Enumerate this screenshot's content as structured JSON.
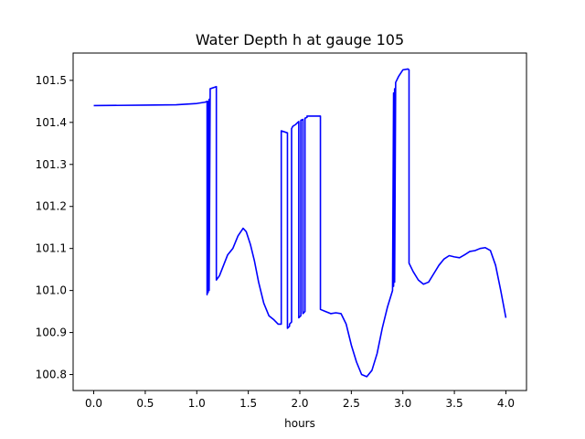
{
  "chart_data": {
    "type": "line",
    "title": "Water Depth h at gauge 105",
    "xlabel": "hours",
    "ylabel": "",
    "xlim": [
      -0.2,
      4.2
    ],
    "ylim": [
      100.762,
      101.565
    ],
    "xticks": [
      0.0,
      0.5,
      1.0,
      1.5,
      2.0,
      2.5,
      3.0,
      3.5,
      4.0
    ],
    "xtick_labels": [
      "0.0",
      "0.5",
      "1.0",
      "1.5",
      "2.0",
      "2.5",
      "3.0",
      "3.5",
      "4.0"
    ],
    "yticks": [
      100.8,
      100.9,
      101.0,
      101.1,
      101.2,
      101.3,
      101.4,
      101.5
    ],
    "ytick_labels": [
      "100.8",
      "100.9",
      "101.0",
      "101.1",
      "101.2",
      "101.3",
      "101.4",
      "101.5"
    ],
    "grid": false,
    "series": [
      {
        "color": "#0000ff",
        "x": [
          0.0,
          0.5,
          0.8,
          1.0,
          1.08,
          1.1,
          1.1,
          1.11,
          1.11,
          1.12,
          1.12,
          1.13,
          1.13,
          1.19,
          1.19,
          1.22,
          1.26,
          1.3,
          1.35,
          1.4,
          1.45,
          1.48,
          1.52,
          1.56,
          1.6,
          1.65,
          1.7,
          1.75,
          1.79,
          1.82,
          1.82,
          1.88,
          1.88,
          1.9,
          1.9,
          1.92,
          1.92,
          1.93,
          1.94,
          1.96,
          1.98,
          1.99,
          1.99,
          2.01,
          2.01,
          2.03,
          2.03,
          2.05,
          2.05,
          2.07,
          2.07,
          2.1,
          2.14,
          2.2,
          2.2,
          2.25,
          2.3,
          2.35,
          2.4,
          2.45,
          2.5,
          2.55,
          2.6,
          2.65,
          2.7,
          2.75,
          2.8,
          2.85,
          2.9,
          2.91,
          2.91,
          2.92,
          2.92,
          2.93,
          2.93,
          2.96,
          3.0,
          3.05,
          3.06,
          3.06,
          3.1,
          3.15,
          3.2,
          3.25,
          3.3,
          3.35,
          3.4,
          3.45,
          3.5,
          3.55,
          3.6,
          3.65,
          3.7,
          3.75,
          3.8,
          3.85,
          3.9,
          3.95,
          4.0
        ],
        "y": [
          101.44,
          101.441,
          101.442,
          101.445,
          101.448,
          101.45,
          100.99,
          101.45,
          100.995,
          101.455,
          101.0,
          101.47,
          101.48,
          101.485,
          101.025,
          101.035,
          101.06,
          101.085,
          101.1,
          101.13,
          101.148,
          101.14,
          101.11,
          101.07,
          101.02,
          100.97,
          100.94,
          100.93,
          100.92,
          100.92,
          101.38,
          101.375,
          100.91,
          100.915,
          100.92,
          100.925,
          101.385,
          101.39,
          101.392,
          101.395,
          101.4,
          101.402,
          100.935,
          100.94,
          101.405,
          101.407,
          100.945,
          100.95,
          101.41,
          101.412,
          101.415,
          101.415,
          101.415,
          101.415,
          100.955,
          100.95,
          100.945,
          100.947,
          100.945,
          100.92,
          100.87,
          100.83,
          100.8,
          100.795,
          100.81,
          100.85,
          100.91,
          100.96,
          101.0,
          101.47,
          101.01,
          101.48,
          101.02,
          101.49,
          101.495,
          101.51,
          101.525,
          101.527,
          101.525,
          101.065,
          101.045,
          101.025,
          101.015,
          101.02,
          101.04,
          101.06,
          101.075,
          101.083,
          101.08,
          101.078,
          101.085,
          101.093,
          101.095,
          101.1,
          101.102,
          101.095,
          101.06,
          101.0,
          100.935
        ]
      }
    ]
  }
}
